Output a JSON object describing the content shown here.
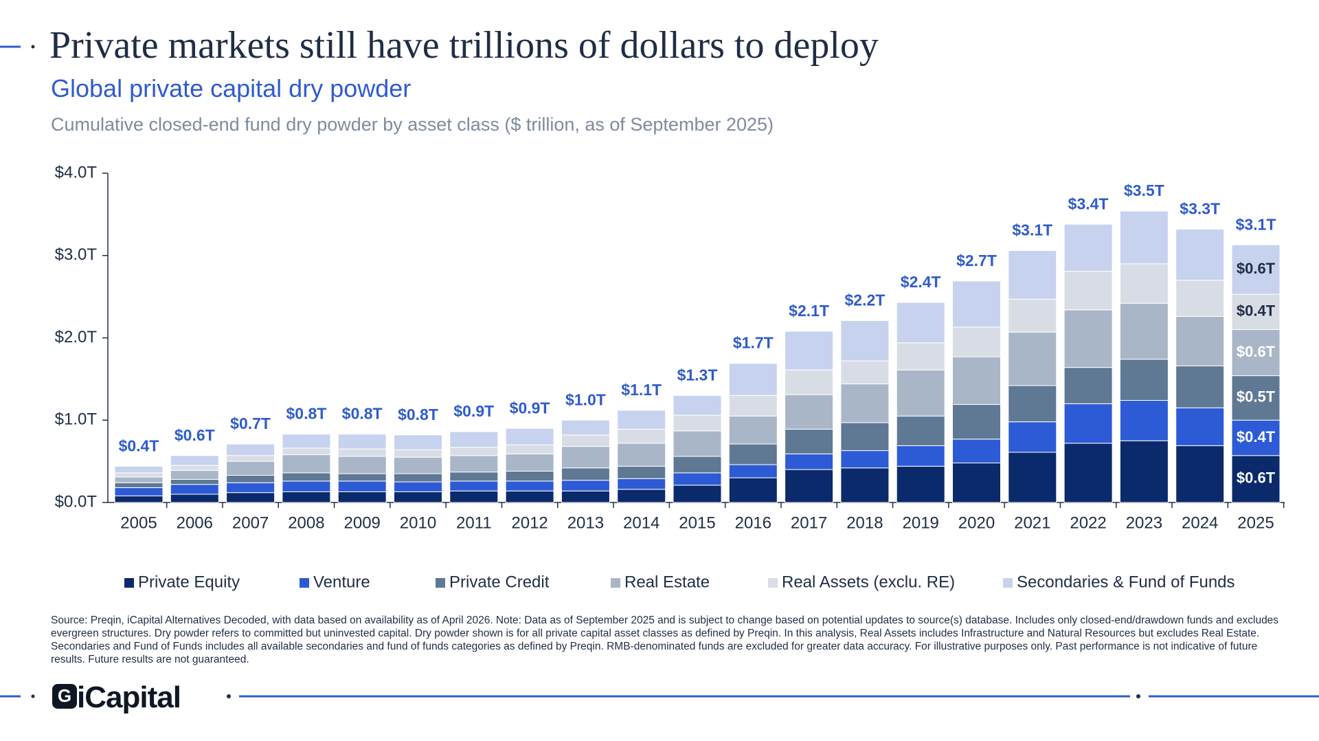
{
  "header": {
    "title": "Private markets still have trillions of dollars to deploy",
    "subtitle": "Global private capital dry powder",
    "description": "Cumulative closed-end fund dry powder by asset class ($ trillion, as of September 2025)"
  },
  "footnote": "Source: Preqin, iCapital Alternatives Decoded, with data based on availability as of April 2026. Note: Data as of September 2025 and is subject to change based on potential updates to source(s) database. Includes only closed-end/drawdown funds and excludes evergreen structures. Dry powder refers to committed but uninvested capital. Dry powder shown is for all private capital asset classes as defined by Preqin. In this analysis, Real Assets includes Infrastructure and Natural Resources but excludes Real Estate. Secondaries and Fund of Funds includes all available secondaries and fund of funds categories as defined by Preqin. RMB-denominated funds are excluded for greater data accuracy. For illustrative purposes only. Past performance is not indicative of future results. Future results are not guaranteed.",
  "logo": "iCapital",
  "chart_data": {
    "type": "stacked-bar",
    "categories": [
      "2005",
      "2006",
      "2007",
      "2008",
      "2009",
      "2010",
      "2011",
      "2012",
      "2013",
      "2014",
      "2015",
      "2016",
      "2017",
      "2018",
      "2019",
      "2020",
      "2021",
      "2022",
      "2023",
      "2024",
      "2025"
    ],
    "ylim": [
      0,
      4
    ],
    "yticks": [
      {
        "value": 0,
        "label": "$0.0T"
      },
      {
        "value": 1,
        "label": "$1.0T"
      },
      {
        "value": 2,
        "label": "$2.0T"
      },
      {
        "value": 3,
        "label": "$3.0T"
      },
      {
        "value": 4,
        "label": "$4.0T"
      }
    ],
    "series": [
      {
        "name": "Private Equity",
        "color": "#0b2a6b",
        "label_color": "#ffffff",
        "values": [
          0.08,
          0.1,
          0.12,
          0.13,
          0.13,
          0.13,
          0.14,
          0.14,
          0.14,
          0.16,
          0.21,
          0.3,
          0.4,
          0.42,
          0.44,
          0.48,
          0.61,
          0.72,
          0.75,
          0.69,
          0.57
        ],
        "value_labels": [
          null,
          null,
          null,
          null,
          null,
          null,
          null,
          null,
          null,
          null,
          null,
          null,
          null,
          null,
          null,
          null,
          null,
          null,
          null,
          null,
          "$0.6T"
        ]
      },
      {
        "name": "Venture",
        "color": "#2d5bd6",
        "label_color": "#ffffff",
        "values": [
          0.1,
          0.12,
          0.12,
          0.13,
          0.13,
          0.12,
          0.12,
          0.12,
          0.13,
          0.13,
          0.15,
          0.16,
          0.19,
          0.21,
          0.25,
          0.29,
          0.37,
          0.48,
          0.49,
          0.46,
          0.43
        ],
        "value_labels": [
          null,
          null,
          null,
          null,
          null,
          null,
          null,
          null,
          null,
          null,
          null,
          null,
          null,
          null,
          null,
          null,
          null,
          null,
          null,
          null,
          "$0.4T"
        ]
      },
      {
        "name": "Private Credit",
        "color": "#5f7894",
        "label_color": "#ffffff",
        "values": [
          0.06,
          0.06,
          0.09,
          0.1,
          0.09,
          0.1,
          0.11,
          0.12,
          0.15,
          0.15,
          0.2,
          0.25,
          0.3,
          0.34,
          0.36,
          0.42,
          0.44,
          0.44,
          0.5,
          0.51,
          0.54
        ],
        "value_labels": [
          null,
          null,
          null,
          null,
          null,
          null,
          null,
          null,
          null,
          null,
          null,
          null,
          null,
          null,
          null,
          null,
          null,
          null,
          null,
          null,
          "$0.5T"
        ]
      },
      {
        "name": "Real Estate",
        "color": "#a9b6c8",
        "label_color": "#ffffff",
        "values": [
          0.07,
          0.11,
          0.17,
          0.22,
          0.21,
          0.2,
          0.2,
          0.21,
          0.26,
          0.28,
          0.31,
          0.34,
          0.42,
          0.47,
          0.56,
          0.58,
          0.65,
          0.7,
          0.68,
          0.6,
          0.56
        ],
        "value_labels": [
          null,
          null,
          null,
          null,
          null,
          null,
          null,
          null,
          null,
          null,
          null,
          null,
          null,
          null,
          null,
          null,
          null,
          null,
          null,
          null,
          "$0.6T"
        ]
      },
      {
        "name": "Real Assets (exclu. RE)",
        "color": "#d8dde5",
        "label_color": "#1f2d45",
        "values": [
          0.05,
          0.06,
          0.07,
          0.08,
          0.09,
          0.09,
          0.1,
          0.11,
          0.14,
          0.17,
          0.19,
          0.25,
          0.3,
          0.28,
          0.33,
          0.36,
          0.4,
          0.47,
          0.48,
          0.44,
          0.43
        ],
        "value_labels": [
          null,
          null,
          null,
          null,
          null,
          null,
          null,
          null,
          null,
          null,
          null,
          null,
          null,
          null,
          null,
          null,
          null,
          null,
          null,
          null,
          "$0.4T"
        ]
      },
      {
        "name": "Secondaries & Fund of Funds",
        "color": "#c7d2ee",
        "label_color": "#1f2d45",
        "values": [
          0.08,
          0.12,
          0.14,
          0.17,
          0.18,
          0.18,
          0.19,
          0.2,
          0.18,
          0.23,
          0.24,
          0.39,
          0.47,
          0.49,
          0.49,
          0.56,
          0.59,
          0.57,
          0.64,
          0.62,
          0.6
        ],
        "value_labels": [
          null,
          null,
          null,
          null,
          null,
          null,
          null,
          null,
          null,
          null,
          null,
          null,
          null,
          null,
          null,
          null,
          null,
          null,
          null,
          null,
          "$0.6T"
        ]
      }
    ],
    "totals": {
      "color": "#2f5bcc",
      "values": [
        0.4,
        0.6,
        0.7,
        0.8,
        0.8,
        0.8,
        0.9,
        0.9,
        1.0,
        1.1,
        1.3,
        1.7,
        2.1,
        2.2,
        2.4,
        2.7,
        3.1,
        3.4,
        3.5,
        3.3,
        3.1
      ],
      "value_labels": [
        "$0.4T",
        "$0.6T",
        "$0.7T",
        "$0.8T",
        "$0.8T",
        "$0.8T",
        "$0.9T",
        "$0.9T",
        "$1.0T",
        "$1.1T",
        "$1.3T",
        "$1.7T",
        "$2.1T",
        "$2.2T",
        "$2.4T",
        "$2.7T",
        "$3.1T",
        "$3.4T",
        "$3.5T",
        "$3.3T",
        "$3.1T"
      ]
    }
  }
}
